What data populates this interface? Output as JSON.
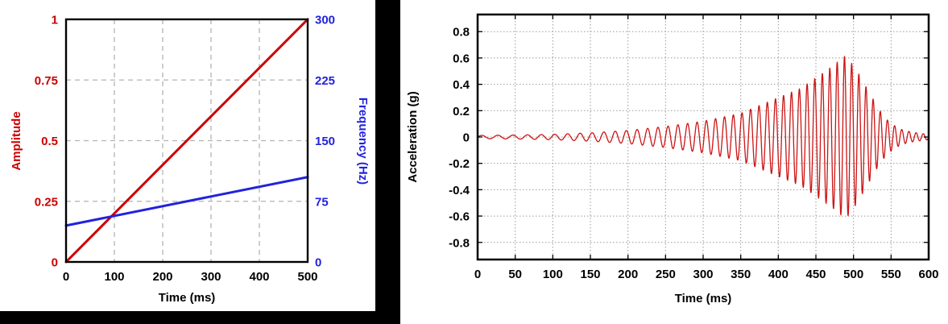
{
  "chart_data": [
    {
      "type": "line",
      "title": "",
      "xlabel": "Time (ms)",
      "x_ticks": [
        "0",
        "100",
        "200",
        "300",
        "400",
        "500"
      ],
      "xlim": [
        0,
        500
      ],
      "grid": "dashed",
      "grid_color": "#b3b3b3",
      "frame_color": "#000000",
      "left_axis": {
        "label": "Amplitude",
        "color": "#cc0000",
        "ticks": [
          "0",
          "0.25",
          "0.5",
          "0.75",
          "1"
        ],
        "lim": [
          0,
          1
        ]
      },
      "right_axis": {
        "label": "Frequency (Hz)",
        "color": "#2222dd",
        "ticks": [
          "0",
          "75",
          "150",
          "225",
          "300"
        ],
        "lim": [
          0,
          300
        ]
      },
      "series": [
        {
          "name": "amplitude-ramp",
          "axis": "left",
          "color": "#cc0000",
          "points": [
            [
              0,
              0
            ],
            [
              500,
              1
            ]
          ]
        },
        {
          "name": "frequency-sweep",
          "axis": "right",
          "color": "#2222dd",
          "points": [
            [
              0,
              45
            ],
            [
              500,
              105
            ]
          ]
        }
      ]
    },
    {
      "type": "line",
      "title": "",
      "xlabel": "Time (ms)",
      "ylabel": "Acceleration (g)",
      "xlim": [
        0,
        600
      ],
      "ylim": [
        -0.93,
        0.93
      ],
      "x_ticks": [
        "0",
        "50",
        "100",
        "150",
        "200",
        "250",
        "300",
        "350",
        "400",
        "450",
        "500",
        "550",
        "600"
      ],
      "y_ticks": [
        "0.8",
        "0.6",
        "0.4",
        "0.2",
        "0",
        "-0.2",
        "-0.4",
        "-0.6",
        "-0.8"
      ],
      "grid": "dotted",
      "grid_color": "#9a9a9a",
      "frame_color": "#000000",
      "tick_label_color": "#000000",
      "series": [
        {
          "name": "acceleration-chirp",
          "color": "#cc1414",
          "signal": {
            "type": "swept-sine-response",
            "f0_hz": 45,
            "f1_hz": 105,
            "sweep_end_ms": 500,
            "peak_g": 0.62,
            "peak_time_ms": 490,
            "envelope_keypoints": [
              [
                0,
                0.012
              ],
              [
                50,
                0.015
              ],
              [
                100,
                0.02
              ],
              [
                150,
                0.032
              ],
              [
                200,
                0.05
              ],
              [
                250,
                0.08
              ],
              [
                300,
                0.12
              ],
              [
                350,
                0.18
              ],
              [
                400,
                0.3
              ],
              [
                430,
                0.37
              ],
              [
                450,
                0.45
              ],
              [
                470,
                0.53
              ],
              [
                485,
                0.6
              ],
              [
                490,
                0.62
              ],
              [
                495,
                0.58
              ],
              [
                505,
                0.5
              ],
              [
                515,
                0.4
              ],
              [
                525,
                0.3
              ],
              [
                535,
                0.2
              ],
              [
                545,
                0.13
              ],
              [
                555,
                0.085
              ],
              [
                565,
                0.055
              ],
              [
                580,
                0.035
              ],
              [
                600,
                0.02
              ]
            ]
          }
        }
      ]
    }
  ]
}
